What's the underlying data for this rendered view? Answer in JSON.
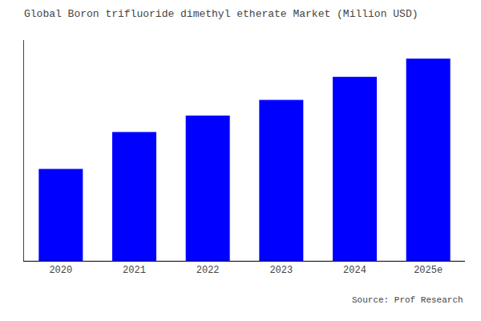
{
  "chart_data": {
    "type": "bar",
    "title": "Global Boron trifluoride dimethyl etherate Market (Million USD)",
    "categories": [
      "2020",
      "2021",
      "2022",
      "2023",
      "2024",
      "2025e"
    ],
    "values": [
      100,
      140,
      158,
      175,
      200,
      220
    ],
    "color": "#0000FF",
    "ylim": [
      0,
      240
    ],
    "grid": false,
    "tick_labels": "x",
    "annotations": [
      "Source: Prof Research"
    ]
  }
}
